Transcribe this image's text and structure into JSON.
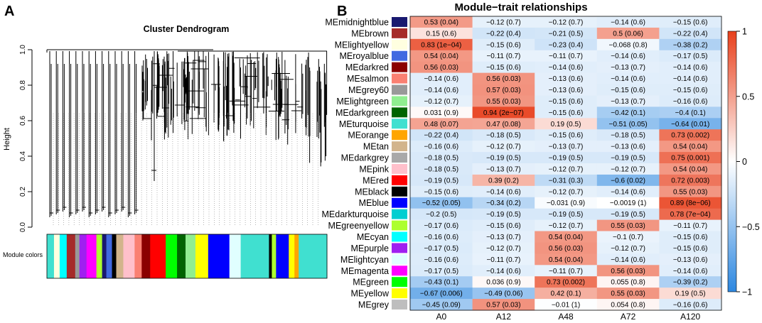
{
  "panel_a": {
    "letter": "A",
    "title": "Cluster Dendrogram",
    "ylabel": "Height",
    "yticks": [
      "0.0",
      "0.2",
      "0.4",
      "0.6",
      "0.8",
      "1.0"
    ],
    "ytick_values": [
      0,
      0.2,
      0.4,
      0.6,
      0.8,
      1.0
    ],
    "ylim": [
      0,
      1.0
    ],
    "colorbar_label": "Module colors"
  },
  "panel_b": {
    "letter": "B",
    "title": "Module−trait relationships"
  },
  "chart_data": {
    "type": "heatmap",
    "title": "Module−trait relationships",
    "traits": [
      "A0",
      "A12",
      "A48",
      "A72",
      "A120"
    ],
    "modules": [
      {
        "name": "MEmidnightblue",
        "color": "#191970",
        "r": [
          0.53,
          -0.12,
          -0.12,
          -0.14,
          -0.15
        ],
        "labels": [
          "0.53 (0.04)",
          "−0.12 (0.7)",
          "−0.12 (0.7)",
          "−0.14 (0.6)",
          "−0.15 (0.6)"
        ]
      },
      {
        "name": "MEbrown",
        "color": "#a52a2a",
        "r": [
          0.15,
          -0.22,
          -0.21,
          0.5,
          -0.22
        ],
        "labels": [
          "0.15 (0.6)",
          "−0.22 (0.4)",
          "−0.21 (0.5)",
          "0.5 (0.06)",
          "−0.22 (0.4)"
        ]
      },
      {
        "name": "MElightyellow",
        "color": "#ffffe0",
        "r": [
          0.83,
          -0.15,
          -0.23,
          -0.068,
          -0.38
        ],
        "labels": [
          "0.83 (1e−04)",
          "−0.15 (0.6)",
          "−0.23 (0.4)",
          "−0.068 (0.8)",
          "−0.38 (0.2)"
        ]
      },
      {
        "name": "MEroyalblue",
        "color": "#4169e1",
        "r": [
          0.54,
          -0.11,
          -0.11,
          -0.14,
          -0.17
        ],
        "labels": [
          "0.54 (0.04)",
          "−0.11 (0.7)",
          "−0.11 (0.7)",
          "−0.14 (0.6)",
          "−0.17 (0.5)"
        ]
      },
      {
        "name": "MEdarkred",
        "color": "#8b0000",
        "r": [
          0.56,
          -0.15,
          -0.14,
          -0.13,
          -0.14
        ],
        "labels": [
          "0.56 (0.03)",
          "−0.15 (0.6)",
          "−0.14 (0.6)",
          "−0.13 (0.7)",
          "−0.14 (0.6)"
        ]
      },
      {
        "name": "MEsalmon",
        "color": "#fa8072",
        "r": [
          -0.14,
          0.56,
          -0.13,
          -0.14,
          -0.14
        ],
        "labels": [
          "−0.14 (0.6)",
          "0.56 (0.03)",
          "−0.13 (0.6)",
          "−0.14 (0.6)",
          "−0.14 (0.6)"
        ]
      },
      {
        "name": "MEgrey60",
        "color": "#999999",
        "r": [
          -0.14,
          0.57,
          -0.13,
          -0.15,
          -0.15
        ],
        "labels": [
          "−0.14 (0.6)",
          "0.57 (0.03)",
          "−0.13 (0.6)",
          "−0.15 (0.6)",
          "−0.15 (0.6)"
        ]
      },
      {
        "name": "MElightgreen",
        "color": "#90ee90",
        "r": [
          -0.12,
          0.55,
          -0.15,
          -0.13,
          -0.16
        ],
        "labels": [
          "−0.12 (0.7)",
          "0.55 (0.03)",
          "−0.15 (0.6)",
          "−0.13 (0.7)",
          "−0.16 (0.6)"
        ]
      },
      {
        "name": "MEdarkgreen",
        "color": "#006400",
        "r": [
          0.031,
          0.94,
          -0.15,
          -0.42,
          -0.4
        ],
        "labels": [
          "0.031 (0.9)",
          "0.94 (2e−07)",
          "−0.15 (0.6)",
          "−0.42 (0.1)",
          "−0.4 (0.1)"
        ]
      },
      {
        "name": "MEturquoise",
        "color": "#40e0d0",
        "r": [
          0.48,
          0.47,
          0.19,
          -0.51,
          -0.64
        ],
        "labels": [
          "0.48 (0.07)",
          "0.47 (0.08)",
          "0.19 (0.5)",
          "−0.51 (0.05)",
          "−0.64 (0.01)"
        ]
      },
      {
        "name": "MEorange",
        "color": "#ffa500",
        "r": [
          -0.22,
          -0.18,
          -0.15,
          -0.18,
          0.73
        ],
        "labels": [
          "−0.22 (0.4)",
          "−0.18 (0.5)",
          "−0.15 (0.6)",
          "−0.18 (0.5)",
          "0.73 (0.002)"
        ]
      },
      {
        "name": "MEtan",
        "color": "#d2b48c",
        "r": [
          -0.16,
          -0.12,
          -0.13,
          -0.13,
          0.54
        ],
        "labels": [
          "−0.16 (0.6)",
          "−0.12 (0.7)",
          "−0.13 (0.7)",
          "−0.13 (0.6)",
          "0.54 (0.04)"
        ]
      },
      {
        "name": "MEdarkgrey",
        "color": "#a9a9a9",
        "r": [
          -0.18,
          -0.19,
          -0.19,
          -0.19,
          0.75
        ],
        "labels": [
          "−0.18 (0.5)",
          "−0.19 (0.5)",
          "−0.19 (0.5)",
          "−0.19 (0.5)",
          "0.75 (0.001)"
        ]
      },
      {
        "name": "MEpink",
        "color": "#ffc0cb",
        "r": [
          -0.18,
          -0.13,
          -0.12,
          -0.12,
          0.54
        ],
        "labels": [
          "−0.18 (0.5)",
          "−0.13 (0.7)",
          "−0.12 (0.7)",
          "−0.12 (0.7)",
          "0.54 (0.04)"
        ]
      },
      {
        "name": "MEred",
        "color": "#ff0000",
        "r": [
          -0.19,
          0.39,
          -0.31,
          -0.6,
          0.72
        ],
        "labels": [
          "−0.19 (0.5)",
          "0.39 (0.2)",
          "−0.31 (0.3)",
          "−0.6 (0.02)",
          "0.72 (0.003)"
        ]
      },
      {
        "name": "MEblack",
        "color": "#000000",
        "r": [
          -0.15,
          -0.14,
          -0.12,
          -0.14,
          0.55
        ],
        "labels": [
          "−0.15 (0.6)",
          "−0.14 (0.6)",
          "−0.12 (0.7)",
          "−0.14 (0.6)",
          "0.55 (0.03)"
        ]
      },
      {
        "name": "MEblue",
        "color": "#0000ff",
        "r": [
          -0.52,
          -0.34,
          -0.031,
          -0.0019,
          0.89
        ],
        "labels": [
          "−0.52 (0.05)",
          "−0.34 (0.2)",
          "−0.031 (0.9)",
          "−0.0019 (1)",
          "0.89 (8e−06)"
        ]
      },
      {
        "name": "MEdarkturquoise",
        "color": "#00ced1",
        "r": [
          -0.2,
          -0.19,
          -0.19,
          -0.19,
          0.78
        ],
        "labels": [
          "−0.2 (0.5)",
          "−0.19 (0.5)",
          "−0.19 (0.5)",
          "−0.19 (0.5)",
          "0.78 (7e−04)"
        ]
      },
      {
        "name": "MEgreenyellow",
        "color": "#adff2f",
        "r": [
          -0.17,
          -0.15,
          -0.12,
          0.55,
          -0.11
        ],
        "labels": [
          "−0.17 (0.6)",
          "−0.15 (0.6)",
          "−0.12 (0.7)",
          "0.55 (0.03)",
          "−0.11 (0.7)"
        ]
      },
      {
        "name": "MEcyan",
        "color": "#00ffff",
        "r": [
          -0.16,
          -0.13,
          0.54,
          -0.1,
          -0.15
        ],
        "labels": [
          "−0.16 (0.6)",
          "−0.13 (0.7)",
          "0.54 (0.04)",
          "−0.1 (0.7)",
          "−0.15 (0.6)"
        ]
      },
      {
        "name": "MEpurple",
        "color": "#a020f0",
        "r": [
          -0.17,
          -0.12,
          0.56,
          -0.12,
          -0.15
        ],
        "labels": [
          "−0.17 (0.5)",
          "−0.12 (0.7)",
          "0.56 (0.03)",
          "−0.12 (0.7)",
          "−0.15 (0.6)"
        ]
      },
      {
        "name": "MElightcyan",
        "color": "#e0ffff",
        "r": [
          -0.16,
          -0.11,
          0.54,
          -0.14,
          -0.13
        ],
        "labels": [
          "−0.16 (0.6)",
          "−0.11 (0.7)",
          "0.54 (0.04)",
          "−0.14 (0.6)",
          "−0.13 (0.6)"
        ]
      },
      {
        "name": "MEmagenta",
        "color": "#ff00ff",
        "r": [
          -0.17,
          -0.14,
          -0.11,
          0.56,
          -0.14
        ],
        "labels": [
          "−0.17 (0.5)",
          "−0.14 (0.6)",
          "−0.11 (0.7)",
          "0.56 (0.03)",
          "−0.14 (0.6)"
        ]
      },
      {
        "name": "MEgreen",
        "color": "#00ff00",
        "r": [
          -0.43,
          0.036,
          0.73,
          0.055,
          -0.39
        ],
        "labels": [
          "−0.43 (0.1)",
          "0.036 (0.9)",
          "0.73 (0.002)",
          "0.055 (0.8)",
          "−0.39 (0.2)"
        ]
      },
      {
        "name": "MEyellow",
        "color": "#ffff00",
        "r": [
          -0.67,
          -0.49,
          0.42,
          0.55,
          0.19
        ],
        "labels": [
          "−0.67 (0.006)",
          "−0.49 (0.06)",
          "0.42 (0.1)",
          "0.55 (0.03)",
          "0.19 (0.5)"
        ]
      },
      {
        "name": "MEgrey",
        "color": "#bebebe",
        "r": [
          -0.45,
          0.57,
          -0.01,
          0.054,
          -0.16
        ],
        "labels": [
          "−0.45 (0.09)",
          "0.57 (0.03)",
          "−0.01 (1)",
          "0.054 (0.8)",
          "−0.16 (0.6)"
        ]
      }
    ],
    "colorscale": {
      "min": -1,
      "max": 1,
      "ticks": [
        1,
        0.5,
        0,
        -0.5,
        -1
      ],
      "tick_labels": [
        "1",
        "0.5",
        "0",
        "−0.5",
        "−1"
      ],
      "colors": {
        "low": "#2c87e0",
        "mid": "#ffffff",
        "high": "#e8401c"
      }
    },
    "module_color_strip": [
      "#40e0d0",
      "#ffffe0",
      "#00ffff",
      "#a52a2a",
      "#999999",
      "#a020f0",
      "#ff00ff",
      "#adff2f",
      "#191970",
      "#4169e1",
      "#000000",
      "#d2b48c",
      "#ffc0cb",
      "#fa8072",
      "#8b0000",
      "#ff0000",
      "#00ff00",
      "#006400",
      "#90ee90",
      "#ffff00",
      "#0000ff",
      "#e0ffff",
      "#40e0d0",
      "#000000",
      "#adff2f",
      "#0000ff",
      "#ffff00",
      "#ffa500",
      "#40e0d0"
    ]
  }
}
